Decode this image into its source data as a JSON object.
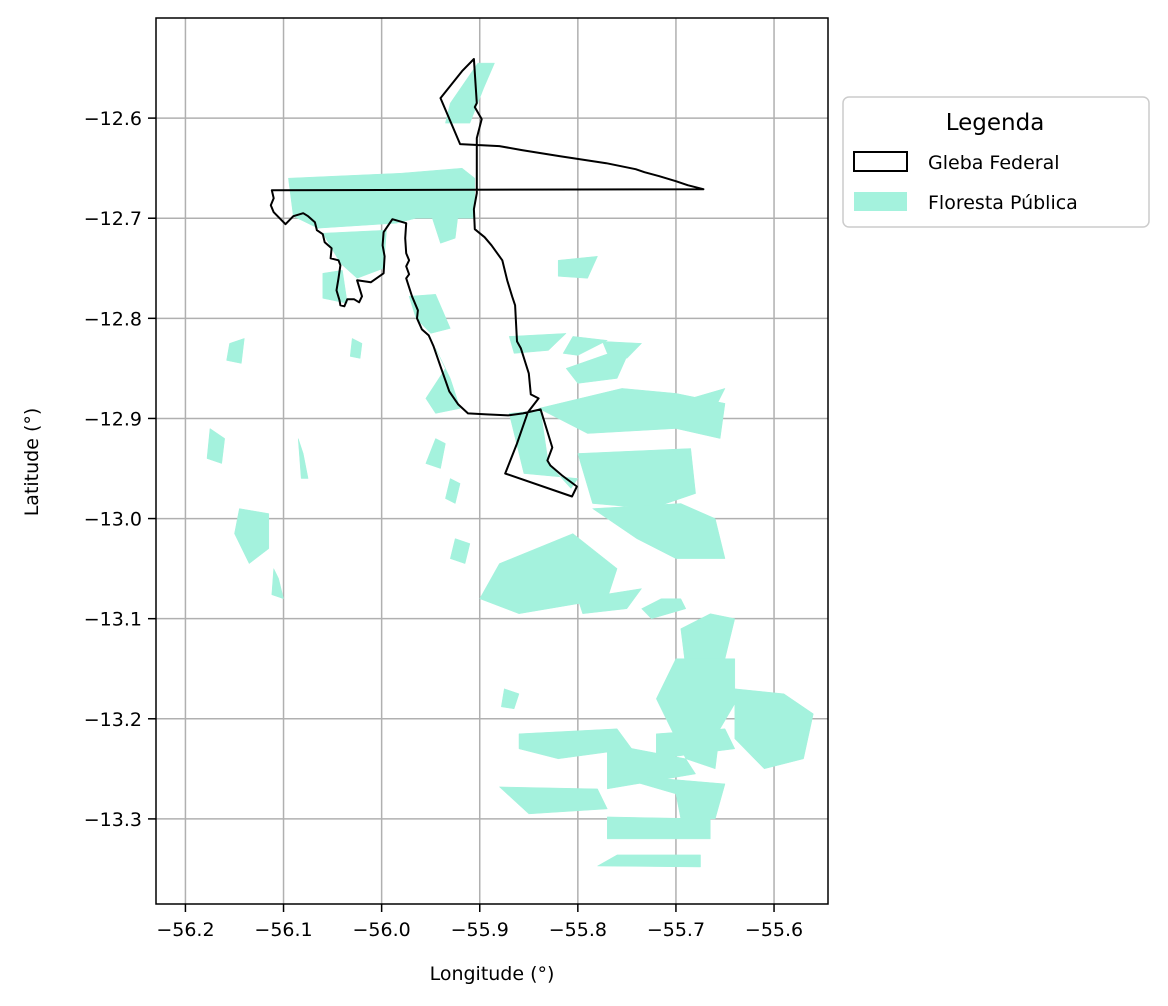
{
  "chart_data": {
    "type": "map",
    "xlabel": "Longitude (°)",
    "ylabel": "Latitude (°)",
    "xlim": [
      -56.23,
      -55.545
    ],
    "ylim": [
      -13.385,
      -12.5
    ],
    "x_ticks": [
      -56.2,
      -56.1,
      -56.0,
      -55.9,
      -55.8,
      -55.7,
      -55.6
    ],
    "x_tick_labels": [
      "−56.2",
      "−56.1",
      "−56.0",
      "−55.9",
      "−55.8",
      "−55.7",
      "−55.6"
    ],
    "y_ticks": [
      -12.6,
      -12.7,
      -12.8,
      -12.9,
      -13.0,
      -13.1,
      -13.2,
      -13.3
    ],
    "y_tick_labels": [
      "−12.6",
      "−12.7",
      "−12.8",
      "−12.9",
      "−13.0",
      "−13.1",
      "−13.2",
      "−13.3"
    ],
    "grid": true,
    "legend": {
      "title": "Legenda",
      "placement": "outside-right-top",
      "entries": [
        {
          "label": "Gleba Federal",
          "style": "outline",
          "color": "#000000"
        },
        {
          "label": "Floresta Pública",
          "style": "fill",
          "color": "#a4f2dd"
        }
      ]
    },
    "gleba_federal_boundary": [
      [
        -55.906,
        -12.541
      ],
      [
        -55.918,
        -12.553
      ],
      [
        -55.94,
        -12.58
      ],
      [
        -55.92,
        -12.626
      ],
      [
        -55.88,
        -12.628
      ],
      [
        -55.857,
        -12.632
      ],
      [
        -55.818,
        -12.638
      ],
      [
        -55.771,
        -12.645
      ],
      [
        -55.756,
        -12.648
      ],
      [
        -55.741,
        -12.651
      ],
      [
        -55.732,
        -12.654
      ],
      [
        -55.717,
        -12.658
      ],
      [
        -55.7,
        -12.663
      ],
      [
        -55.688,
        -12.667
      ],
      [
        -55.672,
        -12.671
      ],
      [
        -56.112,
        -12.672
      ],
      [
        -56.11,
        -12.68
      ],
      [
        -56.113,
        -12.687
      ],
      [
        -56.11,
        -12.694
      ],
      [
        -56.104,
        -12.7
      ],
      [
        -56.098,
        -12.706
      ],
      [
        -56.09,
        -12.698
      ],
      [
        -56.08,
        -12.695
      ],
      [
        -56.075,
        -12.698
      ],
      [
        -56.068,
        -12.704
      ],
      [
        -56.066,
        -12.712
      ],
      [
        -56.06,
        -12.716
      ],
      [
        -56.058,
        -12.724
      ],
      [
        -56.051,
        -12.73
      ],
      [
        -56.052,
        -12.74
      ],
      [
        -56.044,
        -12.742
      ],
      [
        -56.042,
        -12.747
      ],
      [
        -56.044,
        -12.76
      ],
      [
        -56.046,
        -12.772
      ],
      [
        -56.043,
        -12.782
      ],
      [
        -56.042,
        -12.787
      ],
      [
        -56.038,
        -12.788
      ],
      [
        -56.035,
        -12.781
      ],
      [
        -56.028,
        -12.781
      ],
      [
        -56.023,
        -12.784
      ],
      [
        -56.02,
        -12.778
      ],
      [
        -56.025,
        -12.762
      ],
      [
        -56.011,
        -12.764
      ],
      [
        -55.998,
        -12.755
      ],
      [
        -55.997,
        -12.738
      ],
      [
        -55.999,
        -12.727
      ],
      [
        -55.998,
        -12.714
      ],
      [
        -55.989,
        -12.701
      ],
      [
        -55.975,
        -12.705
      ],
      [
        -55.976,
        -12.72
      ],
      [
        -55.975,
        -12.735
      ],
      [
        -55.972,
        -12.742
      ],
      [
        -55.975,
        -12.748
      ],
      [
        -55.972,
        -12.756
      ],
      [
        -55.975,
        -12.76
      ],
      [
        -55.969,
        -12.778
      ],
      [
        -55.963,
        -12.792
      ],
      [
        -55.964,
        -12.8
      ],
      [
        -55.959,
        -12.811
      ],
      [
        -55.952,
        -12.817
      ],
      [
        -55.947,
        -12.828
      ],
      [
        -55.94,
        -12.848
      ],
      [
        -55.931,
        -12.873
      ],
      [
        -55.922,
        -12.886
      ],
      [
        -55.912,
        -12.895
      ],
      [
        -55.893,
        -12.896
      ],
      [
        -55.871,
        -12.897
      ],
      [
        -55.856,
        -12.895
      ],
      [
        -55.847,
        -12.893
      ],
      [
        -55.838,
        -12.891
      ],
      [
        -55.826,
        -12.929
      ],
      [
        -55.831,
        -12.942
      ],
      [
        -55.828,
        -12.947
      ],
      [
        -55.816,
        -12.957
      ],
      [
        -55.801,
        -12.968
      ],
      [
        -55.806,
        -12.978
      ],
      [
        -55.874,
        -12.955
      ],
      [
        -55.862,
        -12.925
      ],
      [
        -55.851,
        -12.894
      ],
      [
        -55.84,
        -12.88
      ],
      [
        -55.848,
        -12.876
      ],
      [
        -55.85,
        -12.855
      ],
      [
        -55.858,
        -12.83
      ],
      [
        -55.862,
        -12.823
      ],
      [
        -55.864,
        -12.787
      ],
      [
        -55.867,
        -12.778
      ],
      [
        -55.872,
        -12.762
      ],
      [
        -55.877,
        -12.742
      ],
      [
        -55.888,
        -12.727
      ],
      [
        -55.895,
        -12.719
      ],
      [
        -55.905,
        -12.711
      ],
      [
        -55.906,
        -12.691
      ],
      [
        -55.903,
        -12.675
      ],
      [
        -55.903,
        -12.62
      ],
      [
        -55.898,
        -12.601
      ],
      [
        -55.905,
        -12.589
      ],
      [
        -55.903,
        -12.585
      ],
      [
        -55.906,
        -12.541
      ]
    ],
    "floresta_publica_polygons": [
      [
        [
          -55.902,
          -12.545
        ],
        [
          -55.885,
          -12.545
        ],
        [
          -55.896,
          -12.57
        ],
        [
          -55.91,
          -12.605
        ],
        [
          -55.935,
          -12.605
        ],
        [
          -55.93,
          -12.585
        ]
      ],
      [
        [
          -56.095,
          -12.66
        ],
        [
          -55.98,
          -12.655
        ],
        [
          -55.918,
          -12.65
        ],
        [
          -55.905,
          -12.66
        ],
        [
          -55.905,
          -12.7
        ],
        [
          -55.965,
          -12.7
        ],
        [
          -55.985,
          -12.705
        ],
        [
          -56.065,
          -12.71
        ],
        [
          -56.09,
          -12.698
        ]
      ],
      [
        [
          -55.955,
          -12.68
        ],
        [
          -55.92,
          -12.68
        ],
        [
          -55.925,
          -12.72
        ],
        [
          -55.94,
          -12.725
        ]
      ],
      [
        [
          -56.06,
          -12.715
        ],
        [
          -55.995,
          -12.712
        ],
        [
          -55.998,
          -12.75
        ],
        [
          -56.025,
          -12.76
        ],
        [
          -56.042,
          -12.745
        ]
      ],
      [
        [
          -56.06,
          -12.755
        ],
        [
          -56.04,
          -12.752
        ],
        [
          -56.035,
          -12.785
        ],
        [
          -56.06,
          -12.78
        ]
      ],
      [
        [
          -55.945,
          -12.776
        ],
        [
          -55.972,
          -12.778
        ],
        [
          -55.965,
          -12.8
        ],
        [
          -55.95,
          -12.815
        ],
        [
          -55.93,
          -12.81
        ]
      ],
      [
        [
          -55.945,
          -12.83
        ],
        [
          -55.935,
          -12.85
        ],
        [
          -55.955,
          -12.88
        ],
        [
          -55.945,
          -12.895
        ],
        [
          -55.92,
          -12.89
        ],
        [
          -55.93,
          -12.86
        ]
      ],
      [
        [
          -55.87,
          -12.895
        ],
        [
          -55.838,
          -12.892
        ],
        [
          -55.83,
          -12.945
        ],
        [
          -55.807,
          -12.97
        ],
        [
          -55.8,
          -12.96
        ],
        [
          -55.855,
          -12.955
        ]
      ],
      [
        [
          -55.805,
          -12.818
        ],
        [
          -55.77,
          -12.822
        ],
        [
          -55.8,
          -12.837
        ],
        [
          -55.815,
          -12.835
        ]
      ],
      [
        [
          -55.775,
          -12.823
        ],
        [
          -55.735,
          -12.825
        ],
        [
          -55.75,
          -12.84
        ],
        [
          -55.77,
          -12.835
        ]
      ],
      [
        [
          -55.87,
          -12.818
        ],
        [
          -55.812,
          -12.815
        ],
        [
          -55.83,
          -12.832
        ],
        [
          -55.865,
          -12.835
        ]
      ],
      [
        [
          -55.812,
          -12.85
        ],
        [
          -55.745,
          -12.827
        ],
        [
          -55.76,
          -12.86
        ],
        [
          -55.8,
          -12.865
        ]
      ],
      [
        [
          -55.84,
          -12.89
        ],
        [
          -55.755,
          -12.87
        ],
        [
          -55.7,
          -12.875
        ],
        [
          -55.65,
          -12.885
        ],
        [
          -55.655,
          -12.92
        ],
        [
          -55.7,
          -12.91
        ],
        [
          -55.79,
          -12.915
        ]
      ],
      [
        [
          -55.715,
          -12.905
        ],
        [
          -55.685,
          -12.88
        ],
        [
          -55.65,
          -12.87
        ],
        [
          -55.668,
          -12.905
        ]
      ],
      [
        [
          -55.8,
          -12.935
        ],
        [
          -55.685,
          -12.93
        ],
        [
          -55.68,
          -12.975
        ],
        [
          -55.725,
          -12.99
        ],
        [
          -55.785,
          -12.985
        ]
      ],
      [
        [
          -55.785,
          -12.99
        ],
        [
          -55.695,
          -12.985
        ],
        [
          -55.66,
          -13.0
        ],
        [
          -55.65,
          -13.04
        ],
        [
          -55.7,
          -13.04
        ],
        [
          -55.74,
          -13.02
        ]
      ],
      [
        [
          -55.88,
          -13.045
        ],
        [
          -55.805,
          -13.015
        ],
        [
          -55.76,
          -13.05
        ],
        [
          -55.77,
          -13.08
        ],
        [
          -55.86,
          -13.095
        ],
        [
          -55.9,
          -13.08
        ]
      ],
      [
        [
          -55.8,
          -13.08
        ],
        [
          -55.735,
          -13.07
        ],
        [
          -55.75,
          -13.09
        ],
        [
          -55.795,
          -13.095
        ]
      ],
      [
        [
          -55.735,
          -13.09
        ],
        [
          -55.715,
          -13.08
        ],
        [
          -55.695,
          -13.08
        ],
        [
          -55.69,
          -13.09
        ],
        [
          -55.725,
          -13.1
        ]
      ],
      [
        [
          -55.695,
          -13.11
        ],
        [
          -55.665,
          -13.095
        ],
        [
          -55.64,
          -13.1
        ],
        [
          -55.65,
          -13.14
        ],
        [
          -55.69,
          -13.15
        ]
      ],
      [
        [
          -55.7,
          -13.14
        ],
        [
          -55.64,
          -13.14
        ],
        [
          -55.64,
          -13.185
        ],
        [
          -55.655,
          -13.21
        ],
        [
          -55.66,
          -13.25
        ],
        [
          -55.69,
          -13.24
        ],
        [
          -55.72,
          -13.18
        ]
      ],
      [
        [
          -55.64,
          -13.17
        ],
        [
          -55.59,
          -13.175
        ],
        [
          -55.56,
          -13.195
        ],
        [
          -55.57,
          -13.24
        ],
        [
          -55.61,
          -13.25
        ],
        [
          -55.64,
          -13.22
        ]
      ],
      [
        [
          -55.72,
          -13.215
        ],
        [
          -55.65,
          -13.21
        ],
        [
          -55.64,
          -13.23
        ],
        [
          -55.72,
          -13.24
        ]
      ],
      [
        [
          -55.77,
          -13.225
        ],
        [
          -55.69,
          -13.24
        ],
        [
          -55.68,
          -13.255
        ],
        [
          -55.77,
          -13.27
        ]
      ],
      [
        [
          -55.77,
          -13.255
        ],
        [
          -55.65,
          -13.265
        ],
        [
          -55.66,
          -13.3
        ],
        [
          -55.695,
          -13.3
        ],
        [
          -55.7,
          -13.275
        ]
      ],
      [
        [
          -55.86,
          -13.215
        ],
        [
          -55.76,
          -13.21
        ],
        [
          -55.745,
          -13.23
        ],
        [
          -55.82,
          -13.24
        ],
        [
          -55.86,
          -13.23
        ]
      ],
      [
        [
          -55.88,
          -13.268
        ],
        [
          -55.78,
          -13.27
        ],
        [
          -55.77,
          -13.29
        ],
        [
          -55.85,
          -13.295
        ]
      ],
      [
        [
          -55.77,
          -13.298
        ],
        [
          -55.665,
          -13.3
        ],
        [
          -55.665,
          -13.32
        ],
        [
          -55.77,
          -13.32
        ]
      ],
      [
        [
          -55.76,
          -13.336
        ],
        [
          -55.675,
          -13.336
        ],
        [
          -55.675,
          -13.348
        ],
        [
          -55.78,
          -13.347
        ]
      ],
      [
        [
          -56.145,
          -12.99
        ],
        [
          -56.115,
          -12.995
        ],
        [
          -56.115,
          -13.03
        ],
        [
          -56.135,
          -13.045
        ],
        [
          -56.15,
          -13.015
        ]
      ],
      [
        [
          -56.155,
          -12.825
        ],
        [
          -56.14,
          -12.82
        ],
        [
          -56.143,
          -12.845
        ],
        [
          -56.158,
          -12.842
        ]
      ],
      [
        [
          -55.945,
          -12.92
        ],
        [
          -55.935,
          -12.925
        ],
        [
          -55.94,
          -12.95
        ],
        [
          -55.955,
          -12.945
        ]
      ],
      [
        [
          -55.925,
          -13.02
        ],
        [
          -55.91,
          -13.025
        ],
        [
          -55.915,
          -13.045
        ],
        [
          -55.93,
          -13.04
        ]
      ],
      [
        [
          -56.085,
          -12.92
        ],
        [
          -56.08,
          -12.935
        ],
        [
          -56.075,
          -12.96
        ],
        [
          -56.082,
          -12.96
        ]
      ],
      [
        [
          -56.11,
          -13.05
        ],
        [
          -56.105,
          -13.06
        ],
        [
          -56.1,
          -13.08
        ],
        [
          -56.112,
          -13.076
        ]
      ],
      [
        [
          -55.875,
          -13.17
        ],
        [
          -55.86,
          -13.175
        ],
        [
          -55.865,
          -13.19
        ],
        [
          -55.878,
          -13.188
        ]
      ],
      [
        [
          -55.93,
          -12.96
        ],
        [
          -55.92,
          -12.965
        ],
        [
          -55.925,
          -12.985
        ],
        [
          -55.935,
          -12.98
        ]
      ],
      [
        [
          -56.175,
          -12.91
        ],
        [
          -56.16,
          -12.92
        ],
        [
          -56.163,
          -12.945
        ],
        [
          -56.178,
          -12.94
        ]
      ],
      [
        [
          -56.03,
          -12.82
        ],
        [
          -56.02,
          -12.825
        ],
        [
          -56.022,
          -12.84
        ],
        [
          -56.032,
          -12.838
        ]
      ],
      [
        [
          -55.82,
          -12.742
        ],
        [
          -55.78,
          -12.738
        ],
        [
          -55.79,
          -12.76
        ],
        [
          -55.82,
          -12.758
        ]
      ]
    ]
  }
}
